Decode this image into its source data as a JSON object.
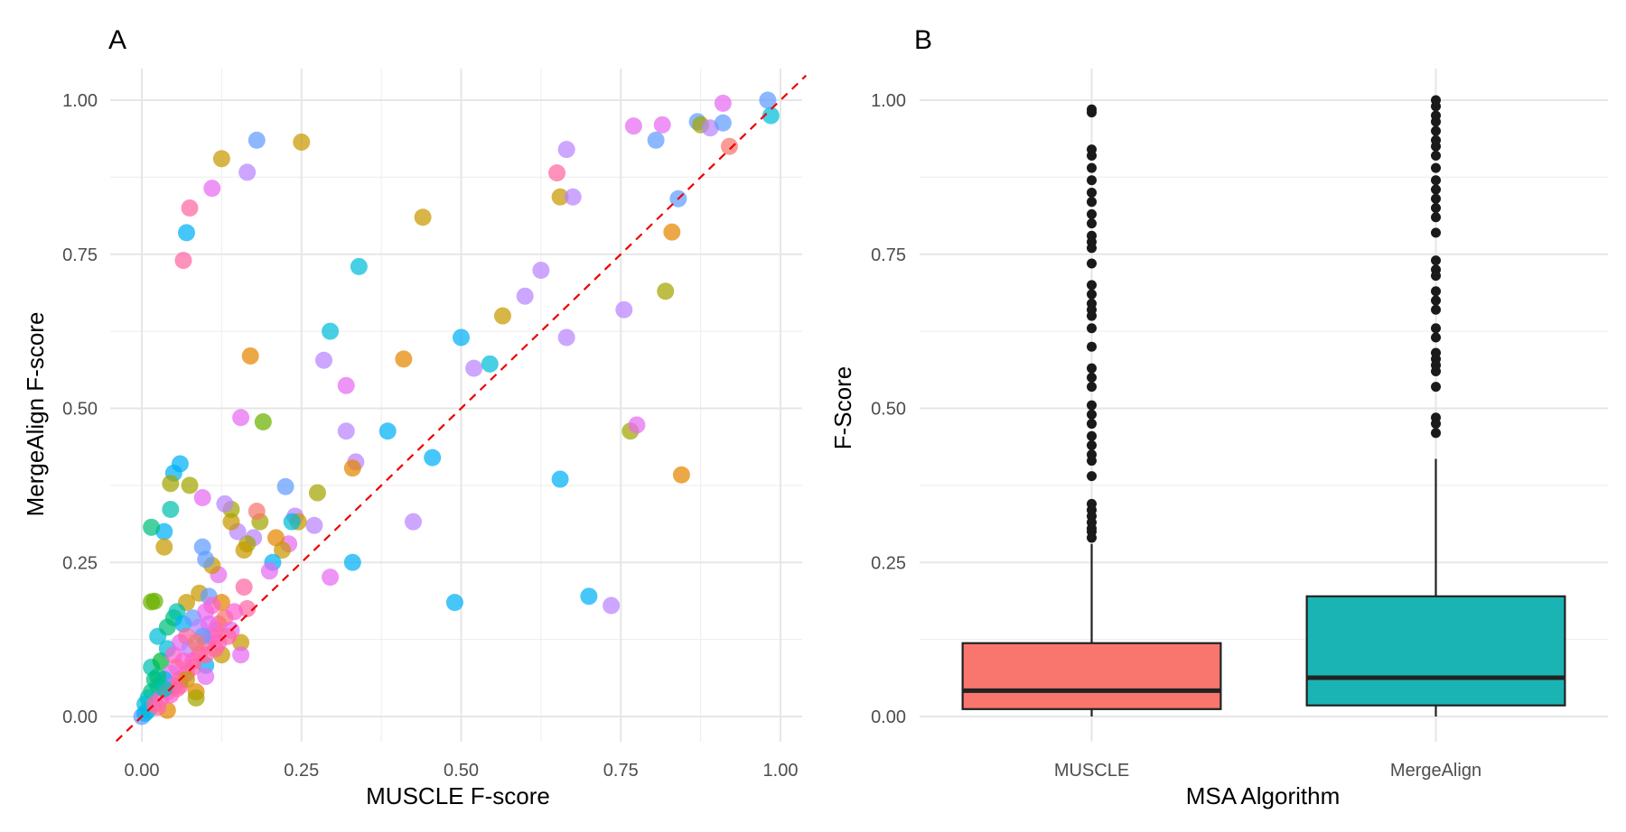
{
  "chart_data": [
    {
      "type": "scatter",
      "panel_label": "A",
      "xlabel": "MUSCLE F-score",
      "ylabel": "MergeAlign F-score",
      "xlim": [
        0,
        1
      ],
      "ylim": [
        0,
        1
      ],
      "x_ticks": [
        "0.00",
        "0.25",
        "0.50",
        "0.75",
        "1.00"
      ],
      "y_ticks": [
        "0.00",
        "0.25",
        "0.50",
        "0.75",
        "1.00"
      ],
      "grid": true,
      "legend": "none",
      "reference_line": {
        "style": "dashed",
        "color": "#ee0000",
        "slope": 1,
        "intercept": 0
      },
      "palette": [
        "#f8766d",
        "#e58700",
        "#c99800",
        "#a3a500",
        "#6bb100",
        "#00ba38",
        "#00bf7d",
        "#00c0af",
        "#00bcd8",
        "#00b0f6",
        "#619cff",
        "#b983ff",
        "#e76bf3",
        "#fd61d1",
        "#ff67a4"
      ],
      "points": [
        [
          0.18,
          0.935,
          10
        ],
        [
          0.25,
          0.932,
          2
        ],
        [
          0.125,
          0.905,
          2
        ],
        [
          0.165,
          0.883,
          11
        ],
        [
          0.11,
          0.857,
          12
        ],
        [
          0.075,
          0.825,
          14
        ],
        [
          0.07,
          0.785,
          9
        ],
        [
          0.065,
          0.74,
          14
        ],
        [
          0.34,
          0.73,
          8
        ],
        [
          0.44,
          0.81,
          2
        ],
        [
          0.17,
          0.585,
          1
        ],
        [
          0.41,
          0.58,
          1
        ],
        [
          0.295,
          0.625,
          8
        ],
        [
          0.285,
          0.578,
          11
        ],
        [
          0.32,
          0.537,
          12
        ],
        [
          0.5,
          0.615,
          9
        ],
        [
          0.52,
          0.565,
          11
        ],
        [
          0.545,
          0.572,
          8
        ],
        [
          0.565,
          0.65,
          2
        ],
        [
          0.6,
          0.682,
          11
        ],
        [
          0.625,
          0.724,
          11
        ],
        [
          0.665,
          0.615,
          11
        ],
        [
          0.655,
          0.385,
          9
        ],
        [
          0.65,
          0.882,
          14
        ],
        [
          0.655,
          0.843,
          2
        ],
        [
          0.665,
          0.92,
          11
        ],
        [
          0.675,
          0.843,
          11
        ],
        [
          0.755,
          0.66,
          11
        ],
        [
          0.77,
          0.958,
          12
        ],
        [
          0.805,
          0.935,
          10
        ],
        [
          0.815,
          0.96,
          12
        ],
        [
          0.82,
          0.69,
          3
        ],
        [
          0.83,
          0.786,
          1
        ],
        [
          0.84,
          0.84,
          10
        ],
        [
          0.845,
          0.392,
          1
        ],
        [
          0.765,
          0.463,
          3
        ],
        [
          0.775,
          0.473,
          12
        ],
        [
          0.87,
          0.965,
          10
        ],
        [
          0.875,
          0.96,
          3
        ],
        [
          0.89,
          0.955,
          11
        ],
        [
          0.91,
          0.963,
          10
        ],
        [
          0.91,
          0.995,
          12
        ],
        [
          0.92,
          0.925,
          0
        ],
        [
          0.98,
          1.0,
          10
        ],
        [
          0.985,
          0.975,
          8
        ],
        [
          0.7,
          0.195,
          9
        ],
        [
          0.735,
          0.18,
          11
        ],
        [
          0.49,
          0.185,
          9
        ],
        [
          0.455,
          0.42,
          9
        ],
        [
          0.425,
          0.316,
          11
        ],
        [
          0.385,
          0.463,
          9
        ],
        [
          0.335,
          0.413,
          11
        ],
        [
          0.33,
          0.403,
          1
        ],
        [
          0.32,
          0.463,
          11
        ],
        [
          0.33,
          0.25,
          9
        ],
        [
          0.295,
          0.226,
          12
        ],
        [
          0.275,
          0.363,
          3
        ],
        [
          0.27,
          0.31,
          11
        ],
        [
          0.24,
          0.325,
          11
        ],
        [
          0.245,
          0.316,
          2
        ],
        [
          0.235,
          0.316,
          8
        ],
        [
          0.225,
          0.373,
          10
        ],
        [
          0.23,
          0.28,
          12
        ],
        [
          0.21,
          0.29,
          1
        ],
        [
          0.22,
          0.27,
          2
        ],
        [
          0.205,
          0.25,
          9
        ],
        [
          0.2,
          0.236,
          12
        ],
        [
          0.19,
          0.478,
          4
        ],
        [
          0.155,
          0.485,
          12
        ],
        [
          0.185,
          0.316,
          3
        ],
        [
          0.18,
          0.333,
          0
        ],
        [
          0.175,
          0.29,
          11
        ],
        [
          0.165,
          0.28,
          3
        ],
        [
          0.16,
          0.27,
          2
        ],
        [
          0.15,
          0.3,
          11
        ],
        [
          0.14,
          0.316,
          2
        ],
        [
          0.14,
          0.336,
          3
        ],
        [
          0.13,
          0.345,
          11
        ],
        [
          0.12,
          0.23,
          12
        ],
        [
          0.11,
          0.245,
          2
        ],
        [
          0.1,
          0.255,
          10
        ],
        [
          0.095,
          0.275,
          10
        ],
        [
          0.095,
          0.355,
          12
        ],
        [
          0.075,
          0.375,
          3
        ],
        [
          0.06,
          0.41,
          9
        ],
        [
          0.05,
          0.395,
          9
        ],
        [
          0.045,
          0.378,
          3
        ],
        [
          0.045,
          0.336,
          7
        ],
        [
          0.035,
          0.3,
          9
        ],
        [
          0.035,
          0.275,
          2
        ],
        [
          0.015,
          0.307,
          6
        ],
        [
          0.015,
          0.186,
          4
        ],
        [
          0.02,
          0.187,
          4
        ],
        [
          0.07,
          0.185,
          2
        ],
        [
          0.09,
          0.2,
          2
        ],
        [
          0.105,
          0.195,
          10
        ],
        [
          0.125,
          0.185,
          1
        ],
        [
          0.16,
          0.21,
          14
        ],
        [
          0.165,
          0.175,
          14
        ],
        [
          0.155,
          0.12,
          2
        ],
        [
          0.155,
          0.1,
          12
        ],
        [
          0.125,
          0.1,
          2
        ],
        [
          0.1,
          0.083,
          9
        ],
        [
          0.085,
          0.04,
          1
        ],
        [
          0.085,
          0.03,
          3
        ],
        [
          0.04,
          0.01,
          1
        ],
        [
          0.025,
          0.13,
          8
        ],
        [
          0.04,
          0.145,
          6
        ],
        [
          0.05,
          0.16,
          6
        ],
        [
          0.055,
          0.17,
          7
        ],
        [
          0.065,
          0.15,
          9
        ],
        [
          0.08,
          0.16,
          10
        ],
        [
          0.09,
          0.145,
          11
        ],
        [
          0.1,
          0.17,
          12
        ],
        [
          0.11,
          0.18,
          13
        ],
        [
          0.12,
          0.15,
          14
        ],
        [
          0.13,
          0.16,
          0
        ],
        [
          0.14,
          0.14,
          12
        ],
        [
          0.145,
          0.17,
          13
        ],
        [
          0.015,
          0.08,
          7
        ],
        [
          0.02,
          0.06,
          6
        ],
        [
          0.03,
          0.09,
          5
        ],
        [
          0.04,
          0.11,
          8
        ],
        [
          0.05,
          0.1,
          13
        ],
        [
          0.06,
          0.12,
          12
        ],
        [
          0.07,
          0.13,
          14
        ],
        [
          0.075,
          0.11,
          11
        ],
        [
          0.08,
          0.09,
          13
        ],
        [
          0.09,
          0.1,
          14
        ],
        [
          0.1,
          0.12,
          14
        ],
        [
          0.11,
          0.13,
          13
        ],
        [
          0.115,
          0.14,
          14
        ],
        [
          0.105,
          0.15,
          12
        ],
        [
          0.095,
          0.13,
          10
        ],
        [
          0.085,
          0.12,
          0
        ],
        [
          0.065,
          0.09,
          13
        ],
        [
          0.055,
          0.08,
          14
        ],
        [
          0.045,
          0.07,
          12
        ],
        [
          0.035,
          0.06,
          9
        ],
        [
          0.025,
          0.05,
          7
        ],
        [
          0.015,
          0.04,
          6
        ],
        [
          0.01,
          0.03,
          7
        ],
        [
          0.005,
          0.02,
          8
        ],
        [
          0.0,
          0.0,
          10
        ],
        [
          0.005,
          0.005,
          9
        ],
        [
          0.01,
          0.01,
          8
        ],
        [
          0.02,
          0.02,
          14
        ],
        [
          0.03,
          0.03,
          13
        ],
        [
          0.04,
          0.04,
          14
        ],
        [
          0.05,
          0.05,
          12
        ],
        [
          0.06,
          0.06,
          14
        ],
        [
          0.07,
          0.07,
          13
        ],
        [
          0.08,
          0.08,
          14
        ],
        [
          0.1,
          0.1,
          14
        ],
        [
          0.12,
          0.12,
          13
        ],
        [
          0.135,
          0.13,
          14
        ],
        [
          0.06,
          0.05,
          14
        ],
        [
          0.07,
          0.06,
          2
        ],
        [
          0.025,
          0.015,
          14
        ],
        [
          0.045,
          0.035,
          13
        ],
        [
          0.055,
          0.045,
          14
        ],
        [
          0.025,
          0.065,
          6
        ],
        [
          0.035,
          0.045,
          7
        ],
        [
          0.1,
          0.065,
          12
        ],
        [
          0.115,
          0.11,
          14
        ]
      ]
    },
    {
      "type": "box",
      "panel_label": "B",
      "xlabel": "MSA Algorithm",
      "ylabel": "F-Score",
      "ylim": [
        0,
        1
      ],
      "y_ticks": [
        "0.00",
        "0.25",
        "0.50",
        "0.75",
        "1.00"
      ],
      "grid": true,
      "legend": "none",
      "categories": [
        "MUSCLE",
        "MergeAlign"
      ],
      "boxes": [
        {
          "name": "MUSCLE",
          "color": "#f8766d",
          "min": 0.0,
          "q1": 0.012,
          "median": 0.042,
          "q3": 0.119,
          "whisker_high": 0.28,
          "outliers": [
            0.29,
            0.3,
            0.305,
            0.315,
            0.325,
            0.335,
            0.345,
            0.39,
            0.415,
            0.425,
            0.44,
            0.455,
            0.475,
            0.49,
            0.505,
            0.535,
            0.55,
            0.565,
            0.6,
            0.63,
            0.65,
            0.66,
            0.67,
            0.685,
            0.7,
            0.735,
            0.76,
            0.77,
            0.78,
            0.8,
            0.815,
            0.835,
            0.85,
            0.87,
            0.89,
            0.91,
            0.92,
            0.98,
            0.985
          ]
        },
        {
          "name": "MergeAlign",
          "color": "#1bb4b4",
          "min": 0.0,
          "q1": 0.018,
          "median": 0.063,
          "q3": 0.195,
          "whisker_high": 0.418,
          "outliers": [
            0.46,
            0.475,
            0.485,
            0.535,
            0.56,
            0.57,
            0.58,
            0.59,
            0.615,
            0.63,
            0.66,
            0.675,
            0.69,
            0.715,
            0.725,
            0.74,
            0.785,
            0.81,
            0.825,
            0.84,
            0.855,
            0.87,
            0.89,
            0.91,
            0.925,
            0.935,
            0.95,
            0.965,
            0.975,
            0.99,
            1.0
          ]
        }
      ]
    }
  ]
}
